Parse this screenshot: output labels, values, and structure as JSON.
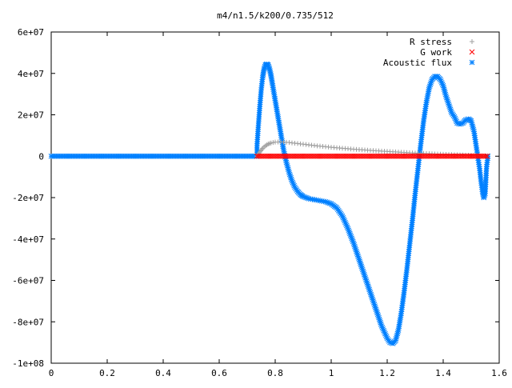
{
  "chart_data": {
    "type": "scatter",
    "title": "m4/n1.5/k200/0.735/512",
    "xlabel": "",
    "ylabel": "",
    "xlim": [
      0,
      1.6
    ],
    "ylim": [
      -100000000,
      60000000
    ],
    "x_ticks": [
      {
        "value": 0,
        "label": "0"
      },
      {
        "value": 0.2,
        "label": "0.2"
      },
      {
        "value": 0.4,
        "label": "0.4"
      },
      {
        "value": 0.6,
        "label": "0.6"
      },
      {
        "value": 0.8,
        "label": "0.8"
      },
      {
        "value": 1.0,
        "label": "1"
      },
      {
        "value": 1.2,
        "label": "1.2"
      },
      {
        "value": 1.4,
        "label": "1.4"
      },
      {
        "value": 1.6,
        "label": "1.6"
      }
    ],
    "y_ticks": [
      {
        "value": 60000000,
        "label": "6e+07"
      },
      {
        "value": 40000000,
        "label": "4e+07"
      },
      {
        "value": 20000000,
        "label": "2e+07"
      },
      {
        "value": 0,
        "label": "0"
      },
      {
        "value": -20000000,
        "label": "-2e+07"
      },
      {
        "value": -40000000,
        "label": "-4e+07"
      },
      {
        "value": -60000000,
        "label": "-6e+07"
      },
      {
        "value": -80000000,
        "label": "-8e+07"
      },
      {
        "value": -100000000,
        "label": "-1e+08"
      }
    ],
    "grid": false,
    "legend_position": "top-right",
    "series": [
      {
        "name": "R stress",
        "marker": "plus",
        "color": "#a0a0a0",
        "x": [
          0.735,
          0.745,
          0.755,
          0.765,
          0.775,
          0.785,
          0.8,
          0.82,
          0.85,
          0.9,
          0.95,
          1.0,
          1.05,
          1.1,
          1.15,
          1.2,
          1.25,
          1.3,
          1.35,
          1.4,
          1.45,
          1.5,
          1.55
        ],
        "y": [
          0,
          2000000,
          3800000,
          5000000,
          5900000,
          6400000,
          6800000,
          6900000,
          6600000,
          5800000,
          5000000,
          4300000,
          3700000,
          3200000,
          2700000,
          2300000,
          1900000,
          1500000,
          1200000,
          900000,
          700000,
          400000,
          100000
        ]
      },
      {
        "name": "G work",
        "marker": "cross",
        "color": "#ff0000",
        "x": [
          0.735,
          1.56
        ],
        "y": [
          0,
          0
        ],
        "dense_range": true
      },
      {
        "name": "Acoustic flux",
        "marker": "star",
        "color": "#0080ff",
        "x": [
          0.0,
          0.735,
          0.735,
          0.74,
          0.745,
          0.75,
          0.755,
          0.76,
          0.765,
          0.77,
          0.775,
          0.78,
          0.785,
          0.79,
          0.8,
          0.81,
          0.82,
          0.83,
          0.84,
          0.85,
          0.86,
          0.87,
          0.88,
          0.89,
          0.9,
          0.92,
          0.94,
          0.96,
          0.98,
          1.0,
          1.02,
          1.04,
          1.06,
          1.08,
          1.1,
          1.12,
          1.14,
          1.16,
          1.18,
          1.2,
          1.21,
          1.22,
          1.23,
          1.24,
          1.25,
          1.26,
          1.27,
          1.28,
          1.29,
          1.3,
          1.31,
          1.32,
          1.33,
          1.34,
          1.35,
          1.36,
          1.37,
          1.38,
          1.39,
          1.4,
          1.41,
          1.42,
          1.43,
          1.44,
          1.45,
          1.46,
          1.47,
          1.48,
          1.49,
          1.5,
          1.51,
          1.52,
          1.53,
          1.535,
          1.54,
          1.545,
          1.55,
          1.555,
          1.56
        ],
        "y": [
          0,
          0,
          5000000,
          15000000,
          24000000,
          32000000,
          38000000,
          42000000,
          44000000,
          44500000,
          44000000,
          42000000,
          39000000,
          35000000,
          27000000,
          19000000,
          11000000,
          3000000,
          -3000000,
          -8000000,
          -12000000,
          -15000000,
          -17000000,
          -18500000,
          -19500000,
          -20500000,
          -21000000,
          -21500000,
          -22000000,
          -23000000,
          -25000000,
          -29000000,
          -35000000,
          -42000000,
          -50000000,
          -58000000,
          -66000000,
          -74000000,
          -82000000,
          -88000000,
          -90000000,
          -90500000,
          -89000000,
          -84000000,
          -76000000,
          -66000000,
          -55000000,
          -43000000,
          -31000000,
          -18000000,
          -6000000,
          6000000,
          17000000,
          26000000,
          33000000,
          37000000,
          38500000,
          38500000,
          37000000,
          34000000,
          29000000,
          25000000,
          21000000,
          19000000,
          16000000,
          15500000,
          16000000,
          17500000,
          18000000,
          17000000,
          12000000,
          3000000,
          -6000000,
          -12000000,
          -17000000,
          -20000000,
          -18000000,
          -5000000,
          0
        ],
        "flat_segment": [
          0.0,
          0.735
        ]
      }
    ]
  }
}
